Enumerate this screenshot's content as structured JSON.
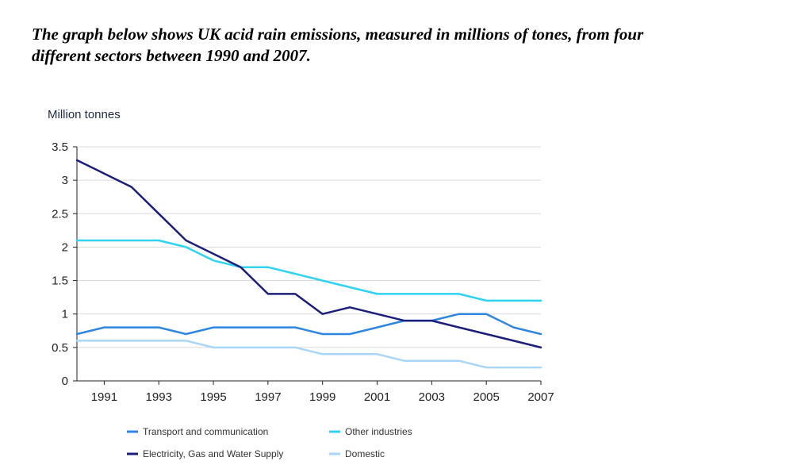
{
  "heading": {
    "line1": "The graph below shows UK acid rain emissions, measured in millions of tones, from four",
    "line2": "different sectors between 1990 and 2007."
  },
  "chart_data": {
    "type": "line",
    "ylabel": "Million tonnes",
    "xlim": [
      1990,
      2007
    ],
    "ylim": [
      0,
      3.5
    ],
    "x_ticks": [
      1991,
      1993,
      1995,
      1997,
      1999,
      2001,
      2003,
      2005,
      2007
    ],
    "y_ticks": [
      {
        "value": 0,
        "label": "0"
      },
      {
        "value": 0.5,
        "label": "0.5"
      },
      {
        "value": 1,
        "label": "1"
      },
      {
        "value": 1.5,
        "label": "1.5"
      },
      {
        "value": 2,
        "label": "2"
      },
      {
        "value": 2.5,
        "label": "2.5"
      },
      {
        "value": 3,
        "label": "3"
      },
      {
        "value": 3.5,
        "label": "3.5"
      }
    ],
    "grid": "horizontal",
    "legend_position": "bottom",
    "x": [
      1990,
      1991,
      1992,
      1993,
      1994,
      1995,
      1996,
      1997,
      1998,
      1999,
      2000,
      2001,
      2002,
      2003,
      2004,
      2005,
      2006,
      2007
    ],
    "series": [
      {
        "name": "Transport and communication",
        "color": "#2e86e0",
        "values": [
          0.7,
          0.8,
          0.8,
          0.8,
          0.7,
          0.8,
          0.8,
          0.8,
          0.8,
          0.7,
          0.7,
          0.8,
          0.9,
          0.9,
          1.0,
          1.0,
          0.8,
          0.7
        ]
      },
      {
        "name": "Other industries",
        "color": "#2fd3f2",
        "values": [
          2.1,
          2.1,
          2.1,
          2.1,
          2.0,
          1.8,
          1.7,
          1.7,
          1.6,
          1.5,
          1.4,
          1.3,
          1.3,
          1.3,
          1.3,
          1.2,
          1.2,
          1.2
        ]
      },
      {
        "name": "Electricity, Gas and Water Supply",
        "color": "#1c1f7a",
        "values": [
          3.3,
          3.1,
          2.9,
          2.5,
          2.1,
          1.9,
          1.7,
          1.3,
          1.3,
          1.0,
          1.1,
          1.0,
          0.9,
          0.9,
          0.8,
          0.7,
          0.6,
          0.5
        ]
      },
      {
        "name": "Domestic",
        "color": "#a9d6f7",
        "values": [
          0.6,
          0.6,
          0.6,
          0.6,
          0.6,
          0.5,
          0.5,
          0.5,
          0.5,
          0.4,
          0.4,
          0.4,
          0.3,
          0.3,
          0.3,
          0.2,
          0.2,
          0.2
        ]
      }
    ],
    "legend_order": [
      0,
      1,
      2,
      3
    ]
  }
}
